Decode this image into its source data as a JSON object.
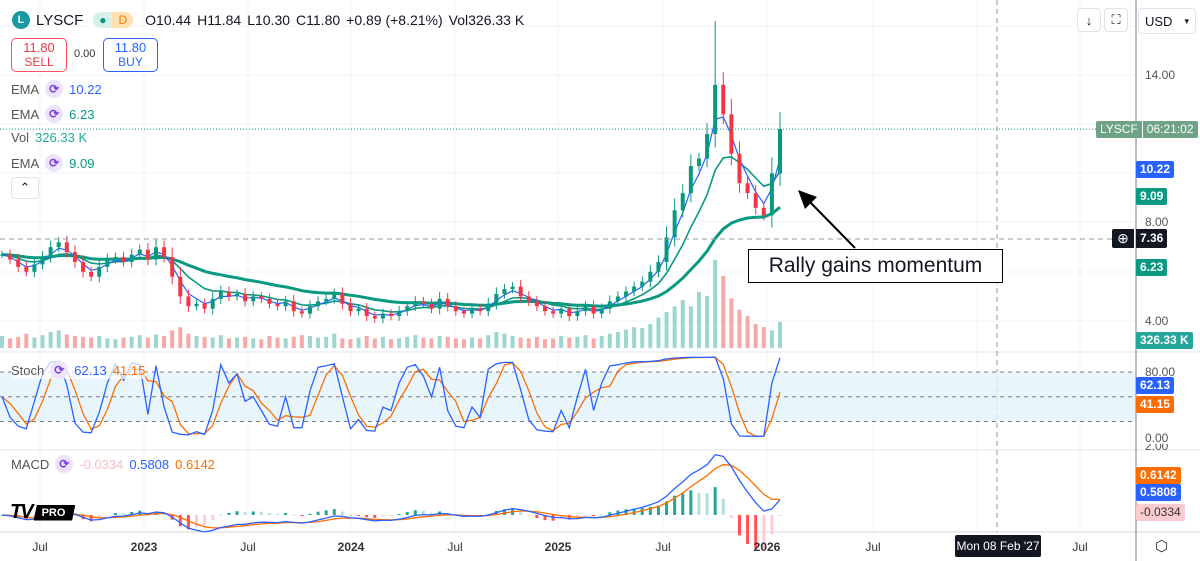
{
  "header": {
    "logo_letter": "L",
    "symbol": "LYSCF",
    "interval": "D",
    "open": "O10.44",
    "high": "H11.84",
    "low": "L10.30",
    "close": "C11.80",
    "change": "+0.89 (+8.21%)",
    "volume_label": "Vol",
    "volume": "326.33 K"
  },
  "trade": {
    "sell_price": "11.80",
    "sell_label": "SELL",
    "spread": "0.00",
    "buy_price": "11.80",
    "buy_label": "BUY"
  },
  "indicators": [
    {
      "name": "EMA",
      "value": "10.22",
      "color": "#2962ff"
    },
    {
      "name": "EMA",
      "value": "6.23",
      "color": "#089981"
    },
    {
      "name": "Vol",
      "value": "326.33 K",
      "color": "#26a69a"
    },
    {
      "name": "EMA",
      "value": "9.09",
      "color": "#089981"
    }
  ],
  "stoch": {
    "name": "Stoch",
    "k": "62.13",
    "d": "41.15"
  },
  "macd": {
    "name": "MACD",
    "hist": "-0.0334",
    "macd": "0.5808",
    "signal": "0.6142"
  },
  "toolbar": {
    "currency": "USD"
  },
  "price_axis": {
    "ticks": [
      "14.00",
      "8.00",
      "4.00"
    ],
    "symbol_tag": "LYSCF",
    "countdown": "06:21:02",
    "ema_fast": "10.22",
    "ema_mid": "9.09",
    "crosshair": "7.36",
    "ema_slow": "6.23",
    "volume": "326.33 K"
  },
  "stoch_axis": {
    "ticks": [
      "80.00",
      "0.00"
    ],
    "k": "62.13",
    "d": "41.15"
  },
  "macd_axis": {
    "ticks": [
      "2.00"
    ],
    "signal": "0.6142",
    "macd": "0.5808",
    "hist": "-0.0334"
  },
  "time_axis": [
    "Jul",
    "2023",
    "Jul",
    "2024",
    "Jul",
    "2025",
    "Jul",
    "2026",
    "Jul",
    "Jul"
  ],
  "crosshair_date": "Mon 08 Feb '27",
  "annotation": "Rally gains momentum",
  "watermark": "PRO",
  "colors": {
    "up": "#089981",
    "down": "#f23645",
    "ema_fast": "#2962ff",
    "ema_mid": "#089981",
    "stoch_k": "#2962ff",
    "stoch_d": "#ff6d00"
  },
  "chart_data": {
    "type": "candlestick",
    "interval_note": "biweekly approximation",
    "closes": [
      6.7,
      6.5,
      6.2,
      6.0,
      6.3,
      6.6,
      7.0,
      7.2,
      6.8,
      6.4,
      6.0,
      5.8,
      6.2,
      6.5,
      6.6,
      6.4,
      6.7,
      6.9,
      6.5,
      7.0,
      6.6,
      5.8,
      5.0,
      4.6,
      4.7,
      4.5,
      4.9,
      5.2,
      5.0,
      5.1,
      4.8,
      5.0,
      4.9,
      4.7,
      4.6,
      4.8,
      4.4,
      4.3,
      4.6,
      4.8,
      4.9,
      5.1,
      4.7,
      4.4,
      4.5,
      4.2,
      4.1,
      4.3,
      4.2,
      4.4,
      4.6,
      4.8,
      4.7,
      4.5,
      4.9,
      4.6,
      4.4,
      4.3,
      4.5,
      4.4,
      4.7,
      5.1,
      5.3,
      5.4,
      5.0,
      4.8,
      4.6,
      4.4,
      4.3,
      4.5,
      4.2,
      4.4,
      4.6,
      4.3,
      4.5,
      4.8,
      5.0,
      5.2,
      5.4,
      5.6,
      6.0,
      6.4,
      7.4,
      8.5,
      9.2,
      10.3,
      10.6,
      11.6,
      13.6,
      12.4,
      10.8,
      9.6,
      9.2,
      8.6,
      8.3,
      10.0,
      11.8
    ],
    "volumes_k": [
      150,
      120,
      140,
      180,
      130,
      160,
      200,
      220,
      170,
      150,
      140,
      130,
      150,
      120,
      110,
      130,
      140,
      160,
      130,
      170,
      150,
      220,
      260,
      180,
      150,
      140,
      130,
      160,
      120,
      130,
      140,
      120,
      110,
      150,
      130,
      120,
      140,
      160,
      150,
      130,
      140,
      180,
      120,
      110,
      130,
      150,
      120,
      140,
      110,
      120,
      140,
      160,
      130,
      120,
      150,
      140,
      120,
      110,
      130,
      120,
      160,
      200,
      180,
      150,
      130,
      120,
      140,
      110,
      120,
      150,
      130,
      140,
      160,
      120,
      150,
      180,
      200,
      230,
      260,
      250,
      300,
      380,
      450,
      520,
      600,
      520,
      700,
      650,
      1100,
      900,
      620,
      480,
      400,
      300,
      260,
      220,
      326.33
    ],
    "price_range": [
      2.6,
      17.5
    ]
  }
}
